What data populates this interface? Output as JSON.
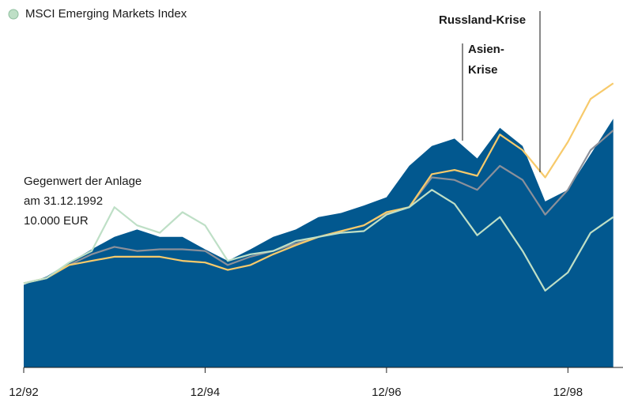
{
  "chart_data": {
    "type": "line",
    "legend": "top-left",
    "categories": [
      "12/92",
      null,
      null,
      null,
      null,
      null,
      null,
      null,
      "12/94",
      null,
      null,
      null,
      null,
      null,
      null,
      null,
      "12/96",
      null,
      null,
      null,
      null,
      null,
      null,
      null,
      "12/98",
      null,
      null
    ],
    "ylim": [
      0,
      44000
    ],
    "series": [
      {
        "color": "#02588f",
        "fill": true,
        "values": [
          10000,
          11000,
          12700,
          14300,
          15800,
          16700,
          15800,
          15800,
          14300,
          12900,
          14300,
          15800,
          16700,
          18200,
          18700,
          19600,
          20600,
          24400,
          26800,
          27700,
          25300,
          29000,
          26800,
          20100,
          21500,
          25800,
          30100
        ]
      },
      {
        "color": "#8b909a",
        "values": [
          10200,
          10800,
          12400,
          13700,
          14600,
          14100,
          14300,
          14300,
          14100,
          12400,
          13400,
          14100,
          15000,
          15800,
          16500,
          17200,
          18700,
          19400,
          23000,
          22700,
          21500,
          24400,
          22700,
          18500,
          21500,
          26300,
          28700
        ]
      },
      {
        "color": "#f7ca6b",
        "values": [
          10200,
          10800,
          12400,
          12900,
          13400,
          13400,
          13400,
          12900,
          12700,
          11800,
          12400,
          13700,
          14800,
          15800,
          16500,
          17200,
          18800,
          19400,
          23400,
          23900,
          23200,
          28200,
          26300,
          23000,
          27300,
          32500,
          34400
        ]
      },
      {
        "name": "MSCI Emerging Markets Index",
        "color": "#bedfc6",
        "values": [
          10200,
          10800,
          12700,
          14100,
          19400,
          17200,
          16300,
          18800,
          17200,
          12900,
          13700,
          14100,
          15300,
          15800,
          16300,
          16500,
          18500,
          19400,
          21500,
          19800,
          16000,
          18200,
          14100,
          9300,
          11500,
          16300,
          18200
        ]
      }
    ],
    "annotations": {
      "start": [
        "Gegenwert der Anlage",
        "am 31.12.1992",
        "10.000 EUR"
      ],
      "asia": [
        "Asien-",
        "Krise"
      ],
      "russia": "Russland-Krise"
    }
  }
}
